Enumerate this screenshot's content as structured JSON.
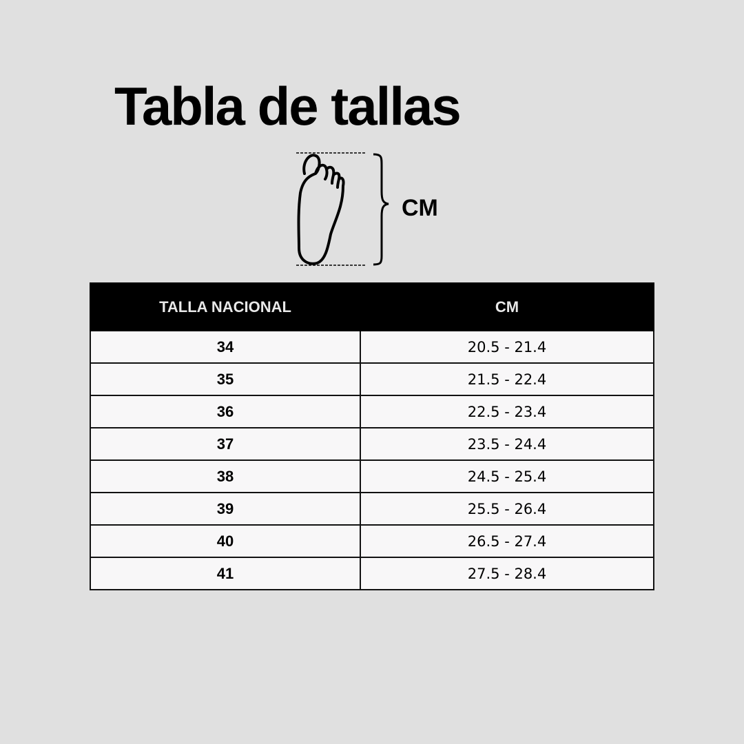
{
  "title": "Tabla de tallas",
  "diagram": {
    "icon": "foot-outline-icon",
    "measure_label": "CM"
  },
  "table": {
    "headers": [
      "TALLA NACIONAL",
      "CM"
    ],
    "rows": [
      {
        "size": "34",
        "cm": "20.5 - 21.4"
      },
      {
        "size": "35",
        "cm": "21.5 - 22.4"
      },
      {
        "size": "36",
        "cm": "22.5 - 23.4"
      },
      {
        "size": "37",
        "cm": "23.5 - 24.4"
      },
      {
        "size": "38",
        "cm": "24.5 - 25.4"
      },
      {
        "size": "39",
        "cm": "25.5 - 26.4"
      },
      {
        "size": "40",
        "cm": "26.5 - 27.4"
      },
      {
        "size": "41",
        "cm": "27.5 - 28.4"
      }
    ]
  },
  "colors": {
    "background": "#e0e0e0",
    "header_bg": "#000000",
    "cell_bg": "#f8f7f8"
  }
}
